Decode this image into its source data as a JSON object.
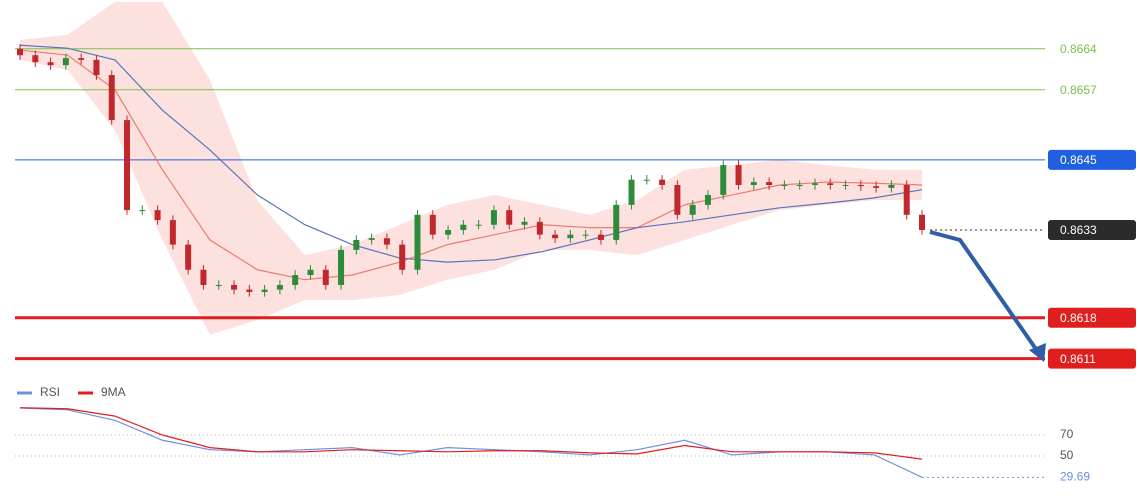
{
  "chart_data": [
    {
      "type": "candlestick",
      "ylim": [
        0.8607,
        0.8672
      ],
      "up_color": "#2e8b3a",
      "down_color": "#c0282d",
      "open": [
        0.8664,
        0.86629,
        0.86617,
        0.86612,
        0.86624,
        0.86621,
        0.86595,
        0.86518,
        0.86364,
        0.86364,
        0.86347,
        0.86305,
        0.86262,
        0.86236,
        0.86236,
        0.86228,
        0.86224,
        0.86228,
        0.86236,
        0.86253,
        0.86262,
        0.86236,
        0.86296,
        0.86313,
        0.86316,
        0.86305,
        0.86262,
        0.86356,
        0.86322,
        0.8633,
        0.86339,
        0.86339,
        0.86364,
        0.86339,
        0.86344,
        0.86322,
        0.86316,
        0.86322,
        0.86322,
        0.86313,
        0.86373,
        0.86416,
        0.86416,
        0.86407,
        0.86356,
        0.86373,
        0.8639,
        0.86441,
        0.86407,
        0.86412,
        0.86407,
        0.86407,
        0.86407,
        0.8641,
        0.86407,
        0.86407,
        0.86405,
        0.86402,
        0.86407,
        0.86356
      ],
      "high": [
        0.86648,
        0.86637,
        0.86625,
        0.86632,
        0.86632,
        0.86629,
        0.86603,
        0.86526,
        0.86372,
        0.86372,
        0.86355,
        0.86313,
        0.8627,
        0.86244,
        0.86244,
        0.86236,
        0.86236,
        0.86244,
        0.86261,
        0.8627,
        0.8627,
        0.86304,
        0.86321,
        0.86324,
        0.86324,
        0.86313,
        0.86364,
        0.86364,
        0.86338,
        0.86347,
        0.86347,
        0.86372,
        0.86372,
        0.86352,
        0.86352,
        0.8633,
        0.8633,
        0.8633,
        0.8633,
        0.86381,
        0.86424,
        0.86424,
        0.86424,
        0.86415,
        0.86381,
        0.86398,
        0.86449,
        0.86449,
        0.8642,
        0.8642,
        0.86415,
        0.86415,
        0.86418,
        0.86418,
        0.86415,
        0.86415,
        0.86413,
        0.86415,
        0.86415,
        0.86364
      ],
      "low": [
        0.86621,
        0.86609,
        0.86604,
        0.86604,
        0.86613,
        0.86587,
        0.8651,
        0.86356,
        0.86356,
        0.86339,
        0.86297,
        0.86254,
        0.86228,
        0.86228,
        0.8622,
        0.86216,
        0.86216,
        0.8622,
        0.86228,
        0.86245,
        0.86228,
        0.86228,
        0.86288,
        0.86305,
        0.86297,
        0.86254,
        0.86254,
        0.86314,
        0.86314,
        0.86322,
        0.86331,
        0.86331,
        0.86331,
        0.86331,
        0.86314,
        0.86308,
        0.86308,
        0.86314,
        0.86305,
        0.86305,
        0.86365,
        0.86408,
        0.86399,
        0.86348,
        0.86348,
        0.86365,
        0.86382,
        0.86399,
        0.86399,
        0.86399,
        0.86399,
        0.86399,
        0.86399,
        0.86399,
        0.86399,
        0.86397,
        0.86394,
        0.86394,
        0.86348,
        0.86322
      ],
      "close": [
        0.86629,
        0.86617,
        0.86612,
        0.86624,
        0.86621,
        0.86595,
        0.86518,
        0.86364,
        0.86364,
        0.86347,
        0.86305,
        0.86262,
        0.86236,
        0.86236,
        0.86228,
        0.86224,
        0.86228,
        0.86236,
        0.86253,
        0.86262,
        0.86236,
        0.86296,
        0.86313,
        0.86316,
        0.86305,
        0.86262,
        0.86356,
        0.86322,
        0.8633,
        0.86339,
        0.86339,
        0.86364,
        0.86339,
        0.86344,
        0.86322,
        0.86316,
        0.86322,
        0.86322,
        0.86313,
        0.86373,
        0.86416,
        0.86416,
        0.86407,
        0.86356,
        0.86373,
        0.8639,
        0.86441,
        0.86407,
        0.86412,
        0.86407,
        0.86407,
        0.86407,
        0.8641,
        0.86407,
        0.86407,
        0.86405,
        0.86402,
        0.86407,
        0.86356,
        0.8633
      ],
      "band_color": "#f9c9c4",
      "band_upper": [
        0.86655,
        0.86664,
        0.8672,
        0.8672,
        0.86587,
        0.86381,
        0.86287,
        0.86305,
        0.86339,
        0.86373,
        0.8639,
        0.86373,
        0.86356,
        0.86381,
        0.86433,
        0.86441,
        0.8645,
        0.86441,
        0.86433,
        0.86433
      ],
      "band_lower": [
        0.86621,
        0.86604,
        0.86501,
        0.86313,
        0.86151,
        0.86176,
        0.8621,
        0.8621,
        0.86219,
        0.86245,
        0.86262,
        0.86296,
        0.86296,
        0.86287,
        0.86313,
        0.86339,
        0.86364,
        0.86373,
        0.86381,
        0.86381
      ],
      "ma_fast_color": "#f07a70",
      "ma_fast": [
        0.86638,
        0.86629,
        0.8657,
        0.86433,
        0.86313,
        0.86262,
        0.86245,
        0.86253,
        0.86275,
        0.86305,
        0.86322,
        0.86339,
        0.86334,
        0.86334,
        0.86373,
        0.8639,
        0.86407,
        0.86412,
        0.8641,
        0.86407
      ],
      "ma_slow_color": "#5a74b8",
      "ma_slow": [
        0.86646,
        0.86641,
        0.86621,
        0.86535,
        0.86467,
        0.8639,
        0.86339,
        0.86305,
        0.86282,
        0.86275,
        0.86279,
        0.86293,
        0.86313,
        0.86334,
        0.86344,
        0.86356,
        0.86368,
        0.86376,
        0.86385,
        0.86399
      ],
      "levels": [
        {
          "value": 0.8664,
          "color": "#7dc04f",
          "width": 1,
          "label_box": false
        },
        {
          "value": 0.8657,
          "color": "#7dc04f",
          "width": 1,
          "label_box": false
        },
        {
          "value": 0.8645,
          "color": "#1f5fe0",
          "width": 1,
          "label_box": true
        },
        {
          "value": 0.8633,
          "color": "#2b2b2b",
          "width": 1,
          "dotted": true,
          "label_box": true
        },
        {
          "value": 0.8618,
          "color": "#e01e1e",
          "width": 3,
          "label_box": true
        },
        {
          "value": 0.8611,
          "color": "#e01e1e",
          "width": 3,
          "label_box": true
        }
      ]
    },
    {
      "type": "line",
      "ylim": [
        15,
        100
      ],
      "yticks": [
        70,
        50
      ],
      "grid": true,
      "series": [
        {
          "name": "RSI",
          "color": "#6f8fe0",
          "values": [
            95.7,
            94,
            84,
            65,
            56,
            54,
            56,
            58,
            51,
            58,
            56,
            54,
            51,
            56,
            65,
            51,
            54,
            54,
            51,
            29.69
          ]
        },
        {
          "name": "9MA",
          "color": "#e01e1e",
          "values": [
            96,
            95,
            88,
            70,
            58,
            54,
            54,
            56,
            55,
            54,
            55,
            55,
            53,
            52,
            60,
            54,
            54,
            54,
            53,
            47
          ]
        }
      ]
    }
  ]
}
